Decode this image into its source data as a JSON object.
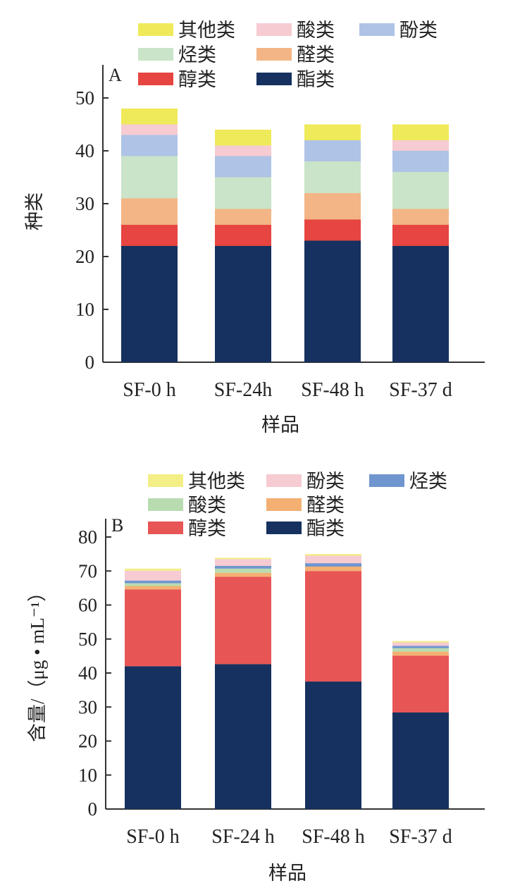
{
  "chart_data": [
    {
      "type": "bar",
      "stacked": true,
      "panel_label": "A",
      "title": "",
      "xlabel": "样品",
      "ylabel": "种类",
      "ylim": [
        0,
        50
      ],
      "yticks": [
        0,
        10,
        20,
        30,
        40,
        50
      ],
      "categories": [
        "SF-0 h",
        "SF-24h",
        "SF-48 h",
        "SF-37 d"
      ],
      "legend_placement": "top",
      "legend_order": [
        "其他类",
        "酸类",
        "酚类",
        "烃类",
        "醛类",
        "醇类",
        "酯类"
      ],
      "series": [
        {
          "name": "酯类",
          "color": "#16315f",
          "values": [
            22,
            22,
            23,
            22
          ]
        },
        {
          "name": "醇类",
          "color": "#e64541",
          "values": [
            4,
            4,
            4,
            4
          ]
        },
        {
          "name": "醛类",
          "color": "#f3b585",
          "values": [
            5,
            3,
            5,
            3
          ]
        },
        {
          "name": "烃类",
          "color": "#c9e4c8",
          "values": [
            8,
            6,
            6,
            7
          ]
        },
        {
          "name": "酚类",
          "color": "#aec3e6",
          "values": [
            4,
            4,
            4,
            4
          ]
        },
        {
          "name": "酸类",
          "color": "#f6cbd1",
          "values": [
            2,
            2,
            0,
            2
          ]
        },
        {
          "name": "其他类",
          "color": "#efea5a",
          "values": [
            3,
            3,
            3,
            3
          ]
        }
      ]
    },
    {
      "type": "bar",
      "stacked": true,
      "panel_label": "B",
      "title": "",
      "xlabel": "样品",
      "ylabel": "含量/（μg • mL⁻¹）",
      "ylim": [
        0,
        80
      ],
      "yticks": [
        0,
        10,
        20,
        30,
        40,
        50,
        60,
        70,
        80
      ],
      "categories": [
        "SF-0 h",
        "SF-24 h",
        "SF-48 h",
        "SF-37 d"
      ],
      "legend_placement": "top",
      "legend_order": [
        "其他类",
        "酚类",
        "烃类",
        "酸类",
        "醛类",
        "醇类",
        "酯类"
      ],
      "series": [
        {
          "name": "酯类",
          "color": "#16315f",
          "values": [
            42.0,
            42.6,
            37.5,
            28.4
          ]
        },
        {
          "name": "醇类",
          "color": "#e85555",
          "values": [
            22.6,
            25.7,
            32.5,
            16.7
          ]
        },
        {
          "name": "醛类",
          "color": "#f3b072",
          "values": [
            1.0,
            1.2,
            1.3,
            1.2
          ]
        },
        {
          "name": "酸类",
          "color": "#b8dcb0",
          "values": [
            0.8,
            1.2,
            0.0,
            1.0
          ]
        },
        {
          "name": "烃类",
          "color": "#7096cf",
          "values": [
            0.8,
            0.8,
            1.0,
            0.7
          ]
        },
        {
          "name": "酚类",
          "color": "#f6cbd1",
          "values": [
            2.9,
            2.0,
            2.2,
            1.0
          ]
        },
        {
          "name": "其他类",
          "color": "#f3ee86",
          "values": [
            0.6,
            0.4,
            0.5,
            0.4
          ]
        }
      ]
    }
  ]
}
